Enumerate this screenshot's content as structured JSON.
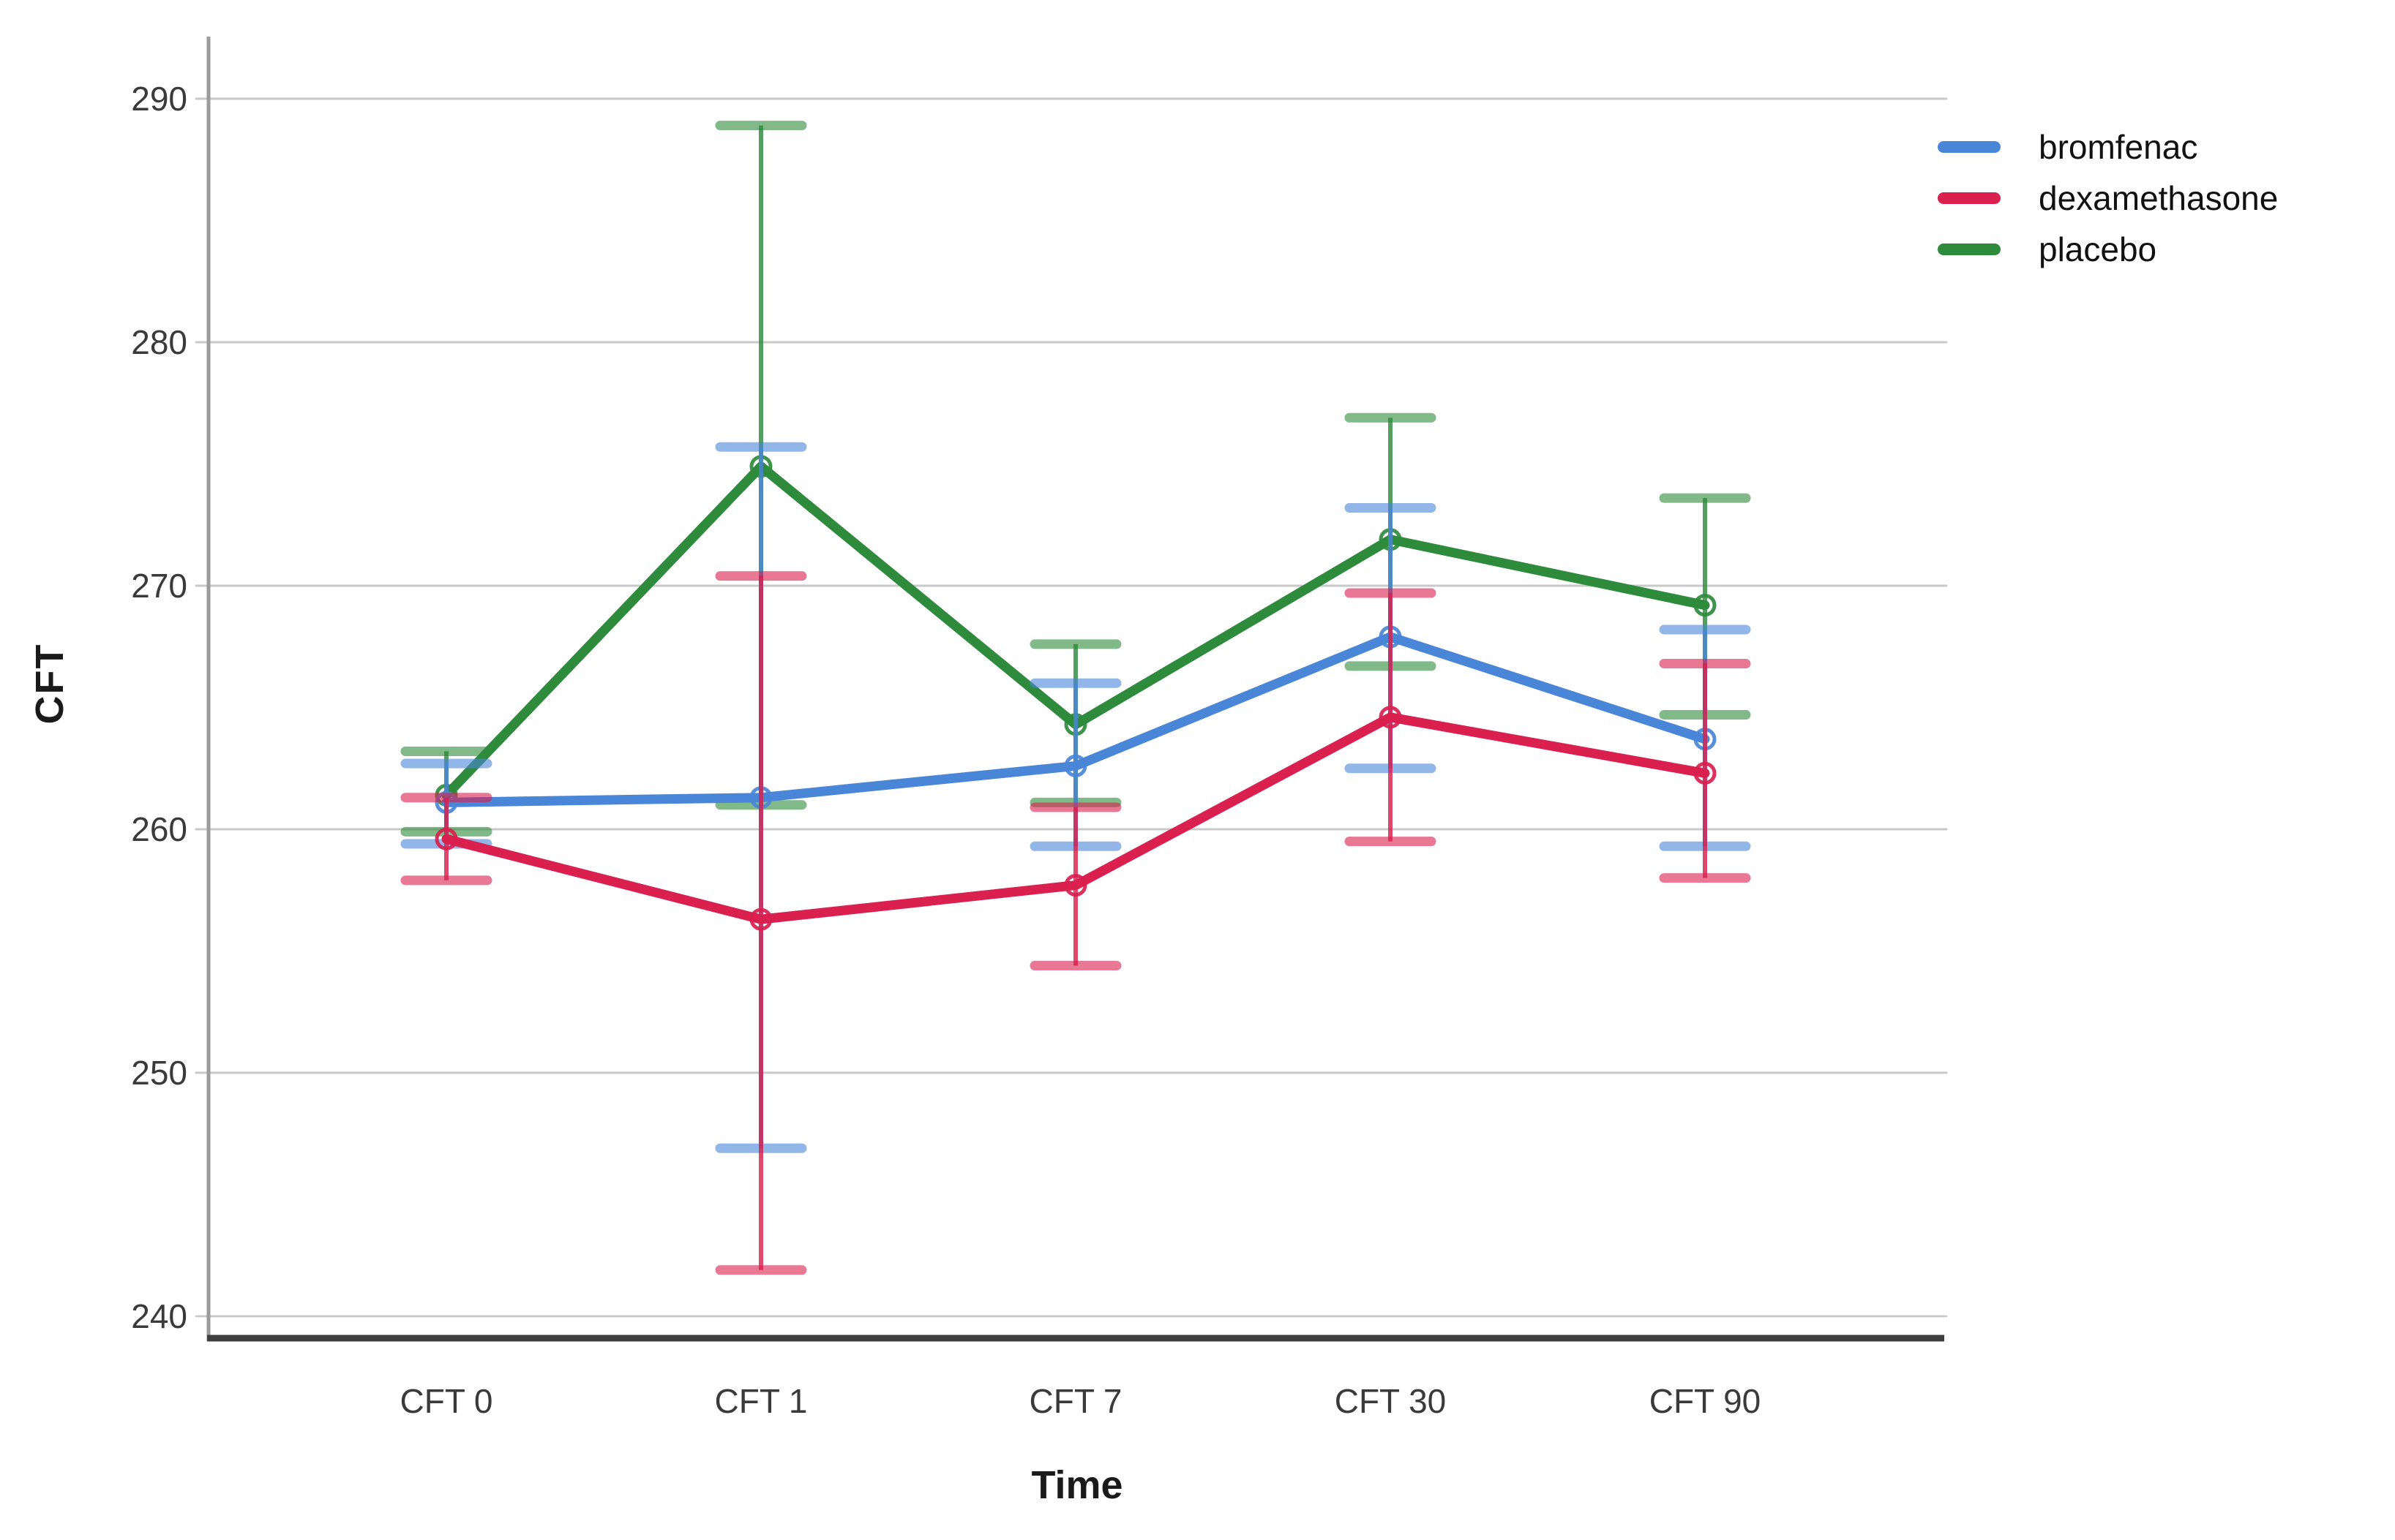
{
  "chart_data": {
    "type": "line",
    "error_bars": true,
    "xlabel": "Time",
    "ylabel": "CFT",
    "categories": [
      "CFT 0",
      "CFT 1",
      "CFT 7",
      "CFT 30",
      "CFT 90"
    ],
    "yticks": [
      240,
      250,
      260,
      270,
      280,
      290
    ],
    "ylim": [
      240,
      290
    ],
    "grid": "horizontal",
    "legend_position": "top-right",
    "marker": "open-circle",
    "series": [
      {
        "name": "bromfenac",
        "color": "#4a86d8",
        "means": [
          261.1,
          261.3,
          262.6,
          267.9,
          263.7
        ],
        "ci_low": [
          259.4,
          246.9,
          259.3,
          262.5,
          259.3
        ],
        "ci_high": [
          262.7,
          275.7,
          266.0,
          273.2,
          268.2
        ]
      },
      {
        "name": "dexamethasone",
        "color": "#d9204e",
        "means": [
          259.6,
          256.3,
          257.7,
          264.6,
          262.3
        ],
        "ci_low": [
          257.9,
          241.9,
          254.4,
          259.5,
          258.0
        ],
        "ci_high": [
          261.3,
          270.4,
          260.9,
          269.7,
          266.8
        ]
      },
      {
        "name": "placebo",
        "color": "#2e8b3c",
        "means": [
          261.4,
          274.9,
          264.3,
          271.9,
          269.2
        ],
        "ci_low": [
          259.9,
          261.0,
          261.1,
          266.7,
          264.7
        ],
        "ci_high": [
          263.2,
          288.9,
          267.6,
          276.9,
          273.6
        ]
      }
    ],
    "style_colors": {
      "gridline": "#c9c9c9",
      "y_axis_line": "#9b9b9b",
      "x_axis_line": "#3f3f3f",
      "tick_label": "#3a3a3a"
    }
  }
}
